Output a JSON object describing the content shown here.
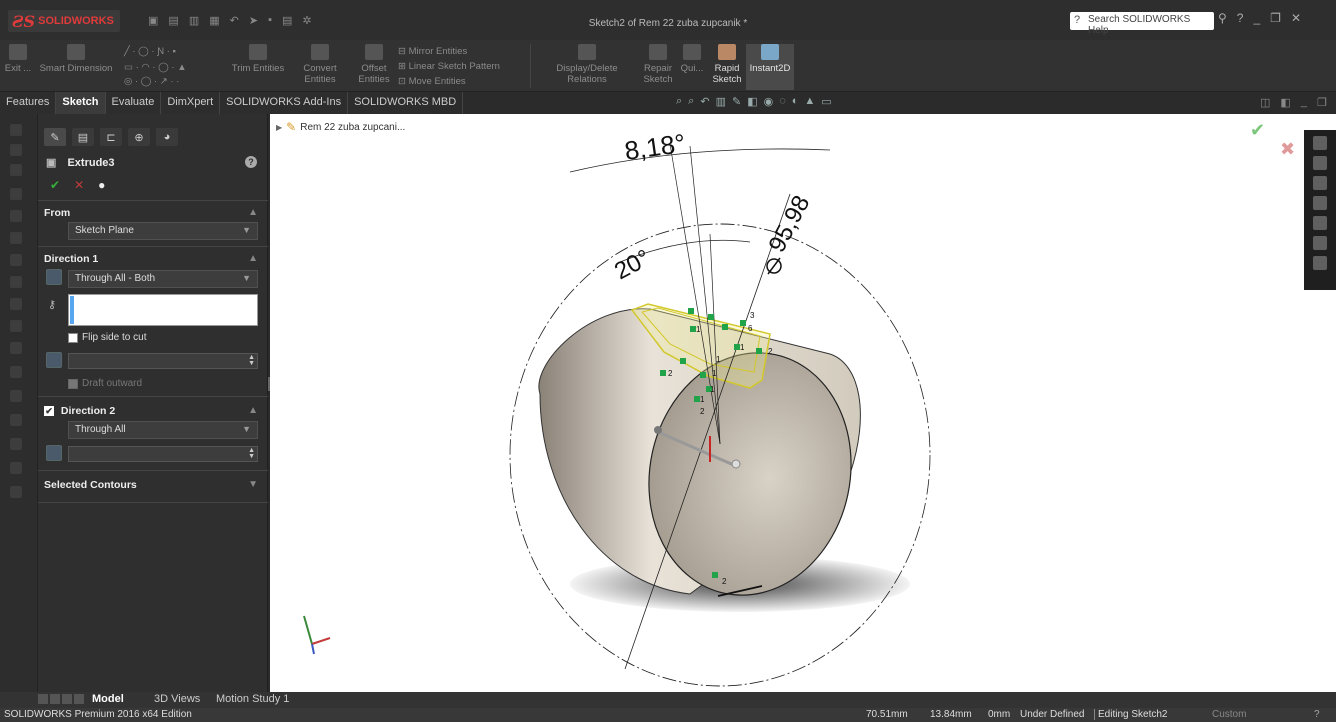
{
  "app": {
    "logo_mark": "ƧS",
    "logo_text": "SOLIDWORKS",
    "window_title": "Sketch2 of Rem 22 zuba zupcanik *",
    "help_search_placeholder": "Search SOLIDWORKS Help"
  },
  "ribbon": {
    "exit": "Exit ...",
    "smart_dimension": "Smart Dimension",
    "trim": "Trim Entities",
    "convert": "Convert Entities",
    "offset": "Offset Entities",
    "mirror": "Mirror Entities",
    "linear_pattern": "Linear Sketch Pattern",
    "move": "Move Entities",
    "display_relations": "Display/Delete Relations",
    "repair": "Repair Sketch",
    "quick": "Qui...",
    "rapid": "Rapid Sketch",
    "instant2d": "Instant2D"
  },
  "cm_tabs": [
    "Features",
    "Sketch",
    "Evaluate",
    "DimXpert",
    "SOLIDWORKS Add-Ins",
    "SOLIDWORKS MBD"
  ],
  "cm_tab_active_index": 1,
  "pm": {
    "title": "Extrude3",
    "from_label": "From",
    "from_value": "Sketch Plane",
    "dir1_label": "Direction 1",
    "dir1_value": "Through All - Both",
    "flip_label": "Flip side to cut",
    "draft_label": "Draft outward",
    "dir2_label": "Direction 2",
    "dir2_value": "Through All",
    "contours_label": "Selected Contours"
  },
  "viewport": {
    "tree_root": "Rem 22 zuba zupcani...",
    "dim_angle1": "8,18°",
    "dim_angle2": "20°",
    "dim_diameter": "95,98",
    "rel_labels": [
      "3",
      "6",
      "1",
      "1",
      "2",
      "1",
      "2",
      "1",
      "1",
      "1",
      "2",
      "2"
    ]
  },
  "bottom_tabs": [
    "Model",
    "3D Views",
    "Motion Study 1"
  ],
  "status": {
    "edition": "SOLIDWORKS Premium 2016 x64 Edition",
    "x": "70.51mm",
    "y": "13.84mm",
    "z": "0mm",
    "defined": "Under Defined",
    "editing": "Editing Sketch2",
    "units": "Custom"
  },
  "colors": {
    "accent_blue": "#56a6f2",
    "ok_green": "#36b13a",
    "cancel_red": "#c23a3a",
    "logo_red": "#e03a3a",
    "sketch_green": "#21a34a",
    "selection_yellow": "#e0e060"
  }
}
